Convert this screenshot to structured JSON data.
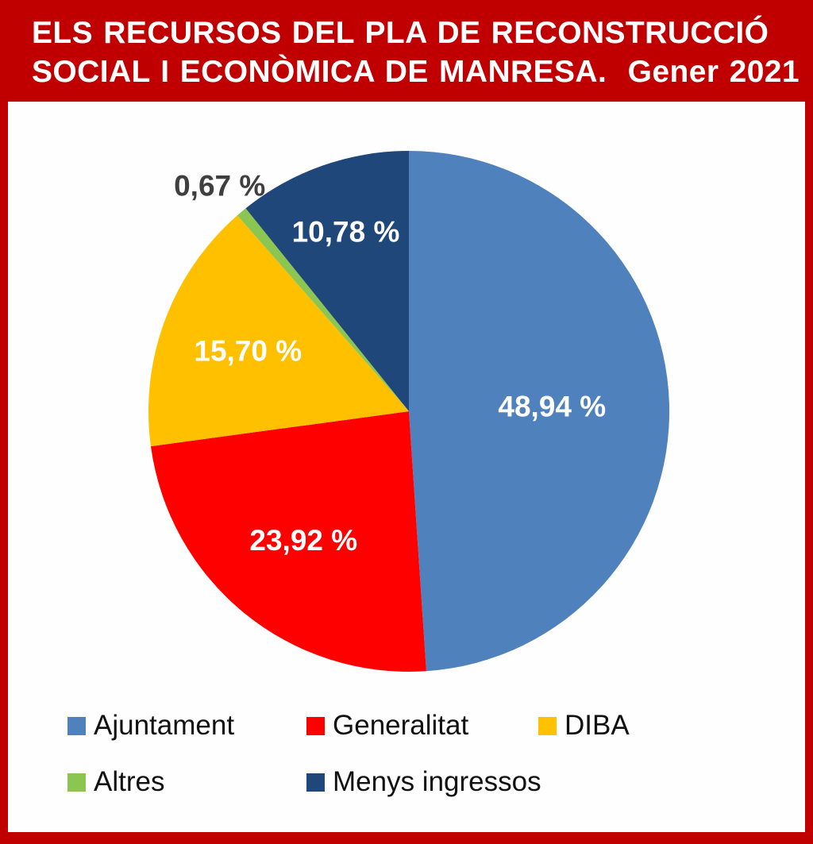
{
  "title": {
    "line1": "ELS RECURSOS DEL PLA DE RECONSTRUCCIÓ",
    "line2": "SOCIAL I ECONÒMICA DE MANRESA.  Gener 2021"
  },
  "colors": {
    "band_red": "#c00000",
    "border_red": "#c00000",
    "title_text": "#ffffff",
    "legend_text": "#111111",
    "outside_label_text": "#3f3f3f"
  },
  "chart_data": {
    "type": "pie",
    "title": "ELS RECURSOS DEL PLA DE RECONSTRUCCIÓ SOCIAL I ECONÒMICA DE MANRESA. Gener 2021",
    "unit": "%",
    "start_angle": "12 o'clock",
    "direction": "clockwise",
    "legend_position": "bottom",
    "slices": [
      {
        "label": "Ajuntament",
        "value": 48.94,
        "display": "48,94 %",
        "color": "#4f81bd",
        "label_color": "#ffffff",
        "label_outside": false
      },
      {
        "label": "Generalitat",
        "value": 23.92,
        "display": "23,92 %",
        "color": "#fe0000",
        "label_color": "#ffffff",
        "label_outside": false
      },
      {
        "label": "DIBA",
        "value": 15.7,
        "display": "15,70 %",
        "color": "#ffc000",
        "label_color": "#ffffff",
        "label_outside": false
      },
      {
        "label": "Altres",
        "value": 0.67,
        "display": "0,67 %",
        "color": "#8cc652",
        "label_color": "#3f3f3f",
        "label_outside": true
      },
      {
        "label": "Menys ingressos",
        "value": 10.78,
        "display": "10,78 %",
        "color": "#1f4779",
        "label_color": "#ffffff",
        "label_outside": false
      }
    ]
  }
}
